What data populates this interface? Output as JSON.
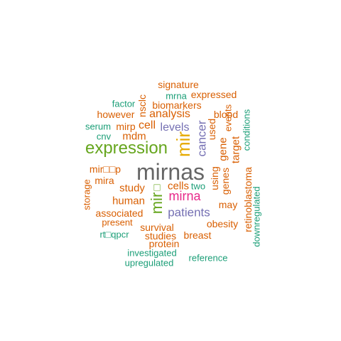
{
  "colors": {
    "orange": "#d95f02",
    "teal": "#1b9e77",
    "green": "#66a61e",
    "purple": "#7570b3",
    "magenta": "#e7298a",
    "gold": "#e6ab02",
    "gray": "#666666"
  },
  "words": {
    "mirnas": "mirnas",
    "expression": "expression",
    "mir_vertical": "mir",
    "mir_green": "mir",
    "mirna": "mirna",
    "patients": "patients",
    "cancer": "cancer",
    "levels": "levels",
    "signature": "signature",
    "mrna": "mrna",
    "expressed": "expressed",
    "factor": "factor",
    "nsclc": "nsclc",
    "biomarkers": "biomarkers",
    "however": "however",
    "analysis": "analysis",
    "blood": "blood",
    "events": "events",
    "serum": "serum",
    "mirp": "mirp",
    "cell": "cell",
    "used": "used",
    "conditions": "conditions",
    "cnv": "cnv",
    "mdm": "mdm",
    "gene": "gene",
    "target": "target",
    "mir_box_p": "mir□□p",
    "retinoblastoma": "retinoblastoma",
    "mira": "mira",
    "storage": "storage",
    "study": "study",
    "box": "□",
    "cells": "cells",
    "two": "two",
    "using": "using",
    "genes": "genes",
    "human": "human",
    "may": "may",
    "downregulated": "downregulated",
    "associated": "associated",
    "present": "present",
    "obesity": "obesity",
    "survival": "survival",
    "rt_qpcr": "rt□qpcr",
    "studies": "studies",
    "breast": "breast",
    "protein": "protein",
    "investigated": "investigated",
    "reference": "reference",
    "upregulated": "upregulated"
  }
}
